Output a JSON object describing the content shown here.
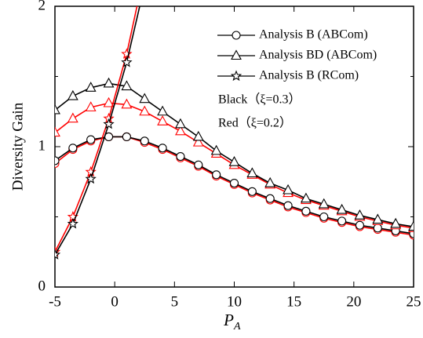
{
  "chart_data": {
    "type": "line",
    "y_label": "Diversity Gain",
    "x_label": {
      "text": "P",
      "subscript": "A"
    },
    "x": [
      -5,
      -3.5,
      -2,
      -0.5,
      1,
      2.5,
      4,
      5.5,
      7,
      8.5,
      10,
      11.5,
      13,
      14.5,
      16,
      17.5,
      19,
      20.5,
      22,
      23.5,
      25
    ],
    "xlim": [
      -5,
      25
    ],
    "xticks": [
      -5,
      0,
      5,
      10,
      15,
      20,
      25
    ],
    "ylim": [
      0,
      2
    ],
    "yticks": [
      0,
      1,
      2
    ],
    "yminor": [
      0.5,
      1.5
    ],
    "legend": "upper right",
    "annotations": [
      "Black（ξ=0.3）",
      "Red（ξ=0.2）"
    ],
    "series": [
      {
        "name": "Analysis B (ABCom)",
        "marker": "circle",
        "curves": [
          {
            "color": "#000000",
            "values": [
              0.9,
              0.99,
              1.05,
              1.07,
              1.07,
              1.04,
              0.99,
              0.93,
              0.87,
              0.8,
              0.74,
              0.68,
              0.63,
              0.58,
              0.54,
              0.5,
              0.47,
              0.44,
              0.42,
              0.4,
              0.38
            ]
          },
          {
            "color": "#ff0000",
            "values": [
              0.88,
              0.98,
              1.04,
              1.07,
              1.07,
              1.03,
              0.98,
              0.92,
              0.86,
              0.79,
              0.73,
              0.67,
              0.62,
              0.57,
              0.53,
              0.49,
              0.46,
              0.43,
              0.41,
              0.39,
              0.37
            ]
          }
        ]
      },
      {
        "name": "Analysis BD (ABCom)",
        "marker": "triangle",
        "curves": [
          {
            "color": "#000000",
            "values": [
              1.26,
              1.36,
              1.42,
              1.45,
              1.43,
              1.34,
              1.25,
              1.16,
              1.07,
              0.97,
              0.89,
              0.81,
              0.74,
              0.69,
              0.63,
              0.59,
              0.55,
              0.51,
              0.48,
              0.45,
              0.43
            ]
          },
          {
            "color": "#ff0000",
            "values": [
              1.1,
              1.2,
              1.28,
              1.31,
              1.3,
              1.25,
              1.18,
              1.11,
              1.03,
              0.95,
              0.87,
              0.8,
              0.73,
              0.67,
              0.62,
              0.58,
              0.54,
              0.5,
              0.47,
              0.44,
              0.42
            ]
          }
        ]
      },
      {
        "name": "Analysis B (RCom)",
        "marker": "star",
        "curves": [
          {
            "color": "#000000",
            "values": [
              0.23,
              0.45,
              0.77,
              1.16,
              1.6,
              2.15,
              null,
              null,
              null,
              null,
              null,
              null,
              null,
              null,
              null,
              null,
              null,
              null,
              null,
              null,
              null
            ]
          },
          {
            "color": "#ff0000",
            "values": [
              0.25,
              0.5,
              0.82,
              1.2,
              1.66,
              2.25,
              null,
              null,
              null,
              null,
              null,
              null,
              null,
              null,
              null,
              null,
              null,
              null,
              null,
              null,
              null
            ]
          }
        ]
      }
    ]
  }
}
